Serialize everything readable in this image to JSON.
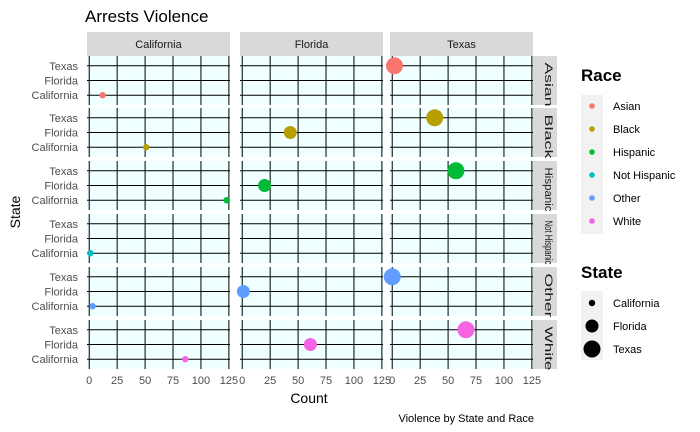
{
  "chart_data": {
    "type": "scatter",
    "title": "Arrests Violence",
    "xlabel": "Count",
    "ylabel": "State",
    "caption": "Violence by State and Race",
    "xlim": [
      -2,
      126
    ],
    "x_ticks": [
      0,
      25,
      50,
      75,
      100,
      125
    ],
    "facet_columns": [
      "California",
      "Florida",
      "Texas"
    ],
    "facet_rows": [
      "Asian",
      "Black",
      "Hispanic",
      "Not Hispanic",
      "Other",
      "White"
    ],
    "y_categories": [
      "California",
      "Florida",
      "Texas"
    ],
    "grid": true,
    "panel_background": "#f0ffff",
    "strip_background": "#d9d9d9",
    "legend_position": "right",
    "race_legend": {
      "title": "Race",
      "items": [
        {
          "label": "Asian",
          "color": "#f8766d"
        },
        {
          "label": "Black",
          "color": "#b79f00"
        },
        {
          "label": "Hispanic",
          "color": "#00ba38"
        },
        {
          "label": "Not Hispanic",
          "color": "#00bfc4"
        },
        {
          "label": "Other",
          "color": "#619cff"
        },
        {
          "label": "White",
          "color": "#f564e3"
        }
      ]
    },
    "state_legend": {
      "title": "State",
      "items": [
        {
          "label": "California"
        },
        {
          "label": "Florida"
        },
        {
          "label": "Texas"
        }
      ]
    },
    "points": [
      {
        "panel_col": "California",
        "race": "Asian",
        "state": "California",
        "count": 12
      },
      {
        "panel_col": "Texas",
        "race": "Asian",
        "state": "Texas",
        "count": 2
      },
      {
        "panel_col": "California",
        "race": "Black",
        "state": "California",
        "count": 51
      },
      {
        "panel_col": "Florida",
        "race": "Black",
        "state": "Florida",
        "count": 43
      },
      {
        "panel_col": "Texas",
        "race": "Black",
        "state": "Texas",
        "count": 38
      },
      {
        "panel_col": "California",
        "race": "Hispanic",
        "state": "California",
        "count": 123
      },
      {
        "panel_col": "Florida",
        "race": "Hispanic",
        "state": "Florida",
        "count": 20
      },
      {
        "panel_col": "Texas",
        "race": "Hispanic",
        "state": "Texas",
        "count": 57
      },
      {
        "panel_col": "California",
        "race": "Not Hispanic",
        "state": "California",
        "count": 1
      },
      {
        "panel_col": "California",
        "race": "Other",
        "state": "California",
        "count": 3
      },
      {
        "panel_col": "Florida",
        "race": "Other",
        "state": "Florida",
        "count": 1
      },
      {
        "panel_col": "Texas",
        "race": "Other",
        "state": "Texas",
        "count": 0
      },
      {
        "panel_col": "California",
        "race": "White",
        "state": "California",
        "count": 86
      },
      {
        "panel_col": "Florida",
        "race": "White",
        "state": "Florida",
        "count": 61
      },
      {
        "panel_col": "Texas",
        "race": "White",
        "state": "Texas",
        "count": 66
      }
    ]
  }
}
